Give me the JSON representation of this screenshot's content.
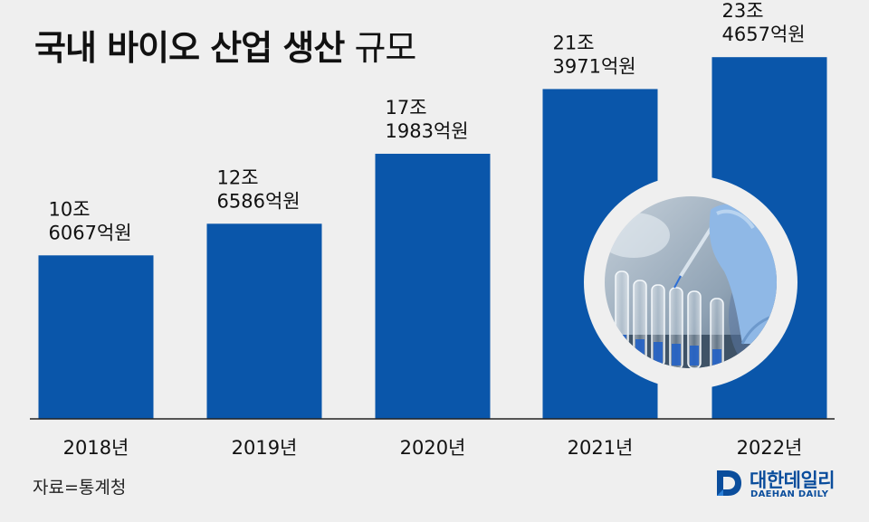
{
  "title": {
    "bold": "국내 바이오 산업 생산",
    "light": "규모"
  },
  "chart_data": {
    "type": "bar",
    "categories": [
      "2018년",
      "2019년",
      "2020년",
      "2021년",
      "2022년"
    ],
    "values": [
      10.6067,
      12.6586,
      17.1983,
      21.3971,
      23.4657
    ],
    "value_labels": [
      [
        "10조",
        "6067억원"
      ],
      [
        "12조",
        "6586억원"
      ],
      [
        "17조",
        "1983억원"
      ],
      [
        "21조",
        "3971억원"
      ],
      [
        "23조",
        "4657억원"
      ]
    ],
    "ylim": [
      0,
      26
    ],
    "bar_color": "#0a56aa",
    "grid": false,
    "legend": "none"
  },
  "source": "자료=통계청",
  "logo": {
    "name": "대한데일리",
    "sub": "DAEHAN DAILY"
  }
}
